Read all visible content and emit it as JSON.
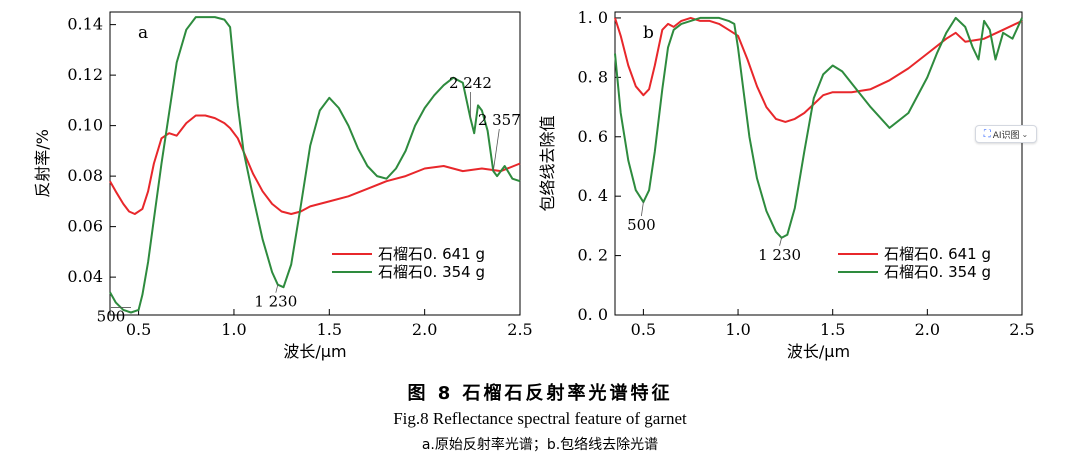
{
  "chart_data": [
    {
      "type": "line",
      "panel_label": "a",
      "xlabel": "波长/μm",
      "ylabel": "反射率/%",
      "xlim": [
        0.35,
        2.5
      ],
      "ylim": [
        0.025,
        0.145
      ],
      "xticks": [
        "0.5",
        "1.0",
        "1.5",
        "2.0",
        "2.5"
      ],
      "xtick_values": [
        0.5,
        1.0,
        1.5,
        2.0,
        2.5
      ],
      "yticks": [
        "0.04",
        "0.06",
        "0.08",
        "0.10",
        "0.12",
        "0.14"
      ],
      "ytick_values": [
        0.04,
        0.06,
        0.08,
        0.1,
        0.12,
        0.14
      ],
      "legend_position": "lower-right",
      "series": [
        {
          "name": "石榴石0. 641 g",
          "color": "#e8272b",
          "x": [
            0.35,
            0.38,
            0.42,
            0.45,
            0.48,
            0.52,
            0.55,
            0.58,
            0.62,
            0.66,
            0.7,
            0.75,
            0.8,
            0.85,
            0.9,
            0.95,
            0.98,
            1.02,
            1.06,
            1.1,
            1.15,
            1.2,
            1.25,
            1.3,
            1.35,
            1.4,
            1.5,
            1.6,
            1.7,
            1.8,
            1.9,
            2.0,
            2.1,
            2.2,
            2.3,
            2.4,
            2.5
          ],
          "y": [
            0.078,
            0.074,
            0.069,
            0.066,
            0.065,
            0.067,
            0.074,
            0.085,
            0.095,
            0.097,
            0.096,
            0.101,
            0.104,
            0.104,
            0.103,
            0.101,
            0.099,
            0.095,
            0.088,
            0.081,
            0.074,
            0.069,
            0.066,
            0.065,
            0.066,
            0.068,
            0.07,
            0.072,
            0.075,
            0.078,
            0.08,
            0.083,
            0.084,
            0.082,
            0.083,
            0.082,
            0.085
          ]
        },
        {
          "name": "石榴石0. 354 g",
          "color": "#2e8b3e",
          "x": [
            0.35,
            0.38,
            0.42,
            0.46,
            0.5,
            0.52,
            0.55,
            0.58,
            0.62,
            0.66,
            0.7,
            0.75,
            0.8,
            0.85,
            0.9,
            0.95,
            0.98,
            1.0,
            1.02,
            1.05,
            1.1,
            1.15,
            1.2,
            1.23,
            1.26,
            1.3,
            1.35,
            1.4,
            1.45,
            1.5,
            1.55,
            1.6,
            1.65,
            1.7,
            1.75,
            1.8,
            1.85,
            1.9,
            1.95,
            2.0,
            2.05,
            2.1,
            2.15,
            2.2,
            2.24,
            2.26,
            2.28,
            2.3,
            2.33,
            2.36,
            2.38,
            2.42,
            2.46,
            2.5
          ],
          "y": [
            0.034,
            0.03,
            0.027,
            0.026,
            0.027,
            0.033,
            0.046,
            0.063,
            0.085,
            0.105,
            0.125,
            0.138,
            0.143,
            0.143,
            0.143,
            0.142,
            0.139,
            0.123,
            0.108,
            0.09,
            0.072,
            0.055,
            0.042,
            0.037,
            0.036,
            0.045,
            0.068,
            0.092,
            0.106,
            0.111,
            0.107,
            0.1,
            0.091,
            0.084,
            0.08,
            0.079,
            0.083,
            0.09,
            0.1,
            0.107,
            0.112,
            0.116,
            0.119,
            0.117,
            0.103,
            0.097,
            0.108,
            0.106,
            0.098,
            0.082,
            0.08,
            0.084,
            0.079,
            0.078
          ]
        }
      ],
      "annotations": [
        {
          "text": "500",
          "x": 0.46,
          "y": 0.028
        },
        {
          "text": "1 230",
          "x": 1.23,
          "y": 0.037
        },
        {
          "text": "2 242",
          "x": 2.24,
          "y": 0.103
        },
        {
          "text": "2 357",
          "x": 2.36,
          "y": 0.082
        }
      ]
    },
    {
      "type": "line",
      "panel_label": "b",
      "xlabel": "波长/μm",
      "ylabel": "包络线去除值",
      "xlim": [
        0.35,
        2.5
      ],
      "ylim": [
        0.0,
        1.02
      ],
      "xticks": [
        "0.5",
        "1.0",
        "1.5",
        "2.0",
        "2.5"
      ],
      "xtick_values": [
        0.5,
        1.0,
        1.5,
        2.0,
        2.5
      ],
      "yticks": [
        "0. 0",
        "0. 2",
        "0. 4",
        "0. 6",
        "0. 8",
        "1. 0"
      ],
      "ytick_values": [
        0.0,
        0.2,
        0.4,
        0.6,
        0.8,
        1.0
      ],
      "legend_position": "lower-right",
      "series": [
        {
          "name": "石榴石0. 641 g",
          "color": "#e8272b",
          "x": [
            0.35,
            0.38,
            0.42,
            0.46,
            0.5,
            0.53,
            0.56,
            0.6,
            0.63,
            0.66,
            0.7,
            0.75,
            0.8,
            0.85,
            0.9,
            0.95,
            1.0,
            1.05,
            1.1,
            1.15,
            1.2,
            1.25,
            1.3,
            1.35,
            1.4,
            1.45,
            1.5,
            1.6,
            1.7,
            1.8,
            1.9,
            2.0,
            2.1,
            2.15,
            2.2,
            2.3,
            2.4,
            2.5
          ],
          "y": [
            1.0,
            0.94,
            0.84,
            0.77,
            0.74,
            0.76,
            0.84,
            0.96,
            0.98,
            0.97,
            0.99,
            1.0,
            0.99,
            0.99,
            0.98,
            0.96,
            0.94,
            0.86,
            0.77,
            0.7,
            0.66,
            0.65,
            0.66,
            0.68,
            0.71,
            0.74,
            0.75,
            0.75,
            0.76,
            0.79,
            0.83,
            0.88,
            0.93,
            0.95,
            0.92,
            0.93,
            0.96,
            0.99
          ]
        },
        {
          "name": "石榴石0. 354 g",
          "color": "#2e8b3e",
          "x": [
            0.35,
            0.38,
            0.42,
            0.46,
            0.5,
            0.53,
            0.56,
            0.6,
            0.63,
            0.66,
            0.7,
            0.75,
            0.8,
            0.85,
            0.9,
            0.95,
            0.98,
            1.0,
            1.03,
            1.06,
            1.1,
            1.15,
            1.2,
            1.23,
            1.26,
            1.3,
            1.35,
            1.4,
            1.45,
            1.5,
            1.55,
            1.6,
            1.7,
            1.8,
            1.9,
            2.0,
            2.05,
            2.1,
            2.15,
            2.2,
            2.24,
            2.27,
            2.3,
            2.33,
            2.36,
            2.4,
            2.45,
            2.5
          ],
          "y": [
            0.88,
            0.68,
            0.52,
            0.42,
            0.38,
            0.42,
            0.55,
            0.76,
            0.9,
            0.96,
            0.98,
            0.99,
            1.0,
            1.0,
            1.0,
            0.99,
            0.98,
            0.9,
            0.75,
            0.6,
            0.46,
            0.35,
            0.28,
            0.26,
            0.27,
            0.36,
            0.55,
            0.73,
            0.81,
            0.84,
            0.82,
            0.78,
            0.7,
            0.63,
            0.68,
            0.8,
            0.88,
            0.95,
            1.0,
            0.97,
            0.9,
            0.86,
            0.99,
            0.96,
            0.86,
            0.95,
            0.93,
            1.0
          ]
        }
      ],
      "annotations": [
        {
          "text": "500",
          "x": 0.5,
          "y": 0.38
        },
        {
          "text": "1 230",
          "x": 1.23,
          "y": 0.26
        }
      ]
    }
  ],
  "caption": {
    "zh": "图 8  石榴石反射率光谱特征",
    "en": "Fig.8   Reflectance spectral feature of garnet",
    "sub": "a.原始反射率光谱；b.包络线去除光谱"
  },
  "ai_badge": {
    "label": "AI识图",
    "icon": "ai-scan-icon"
  }
}
